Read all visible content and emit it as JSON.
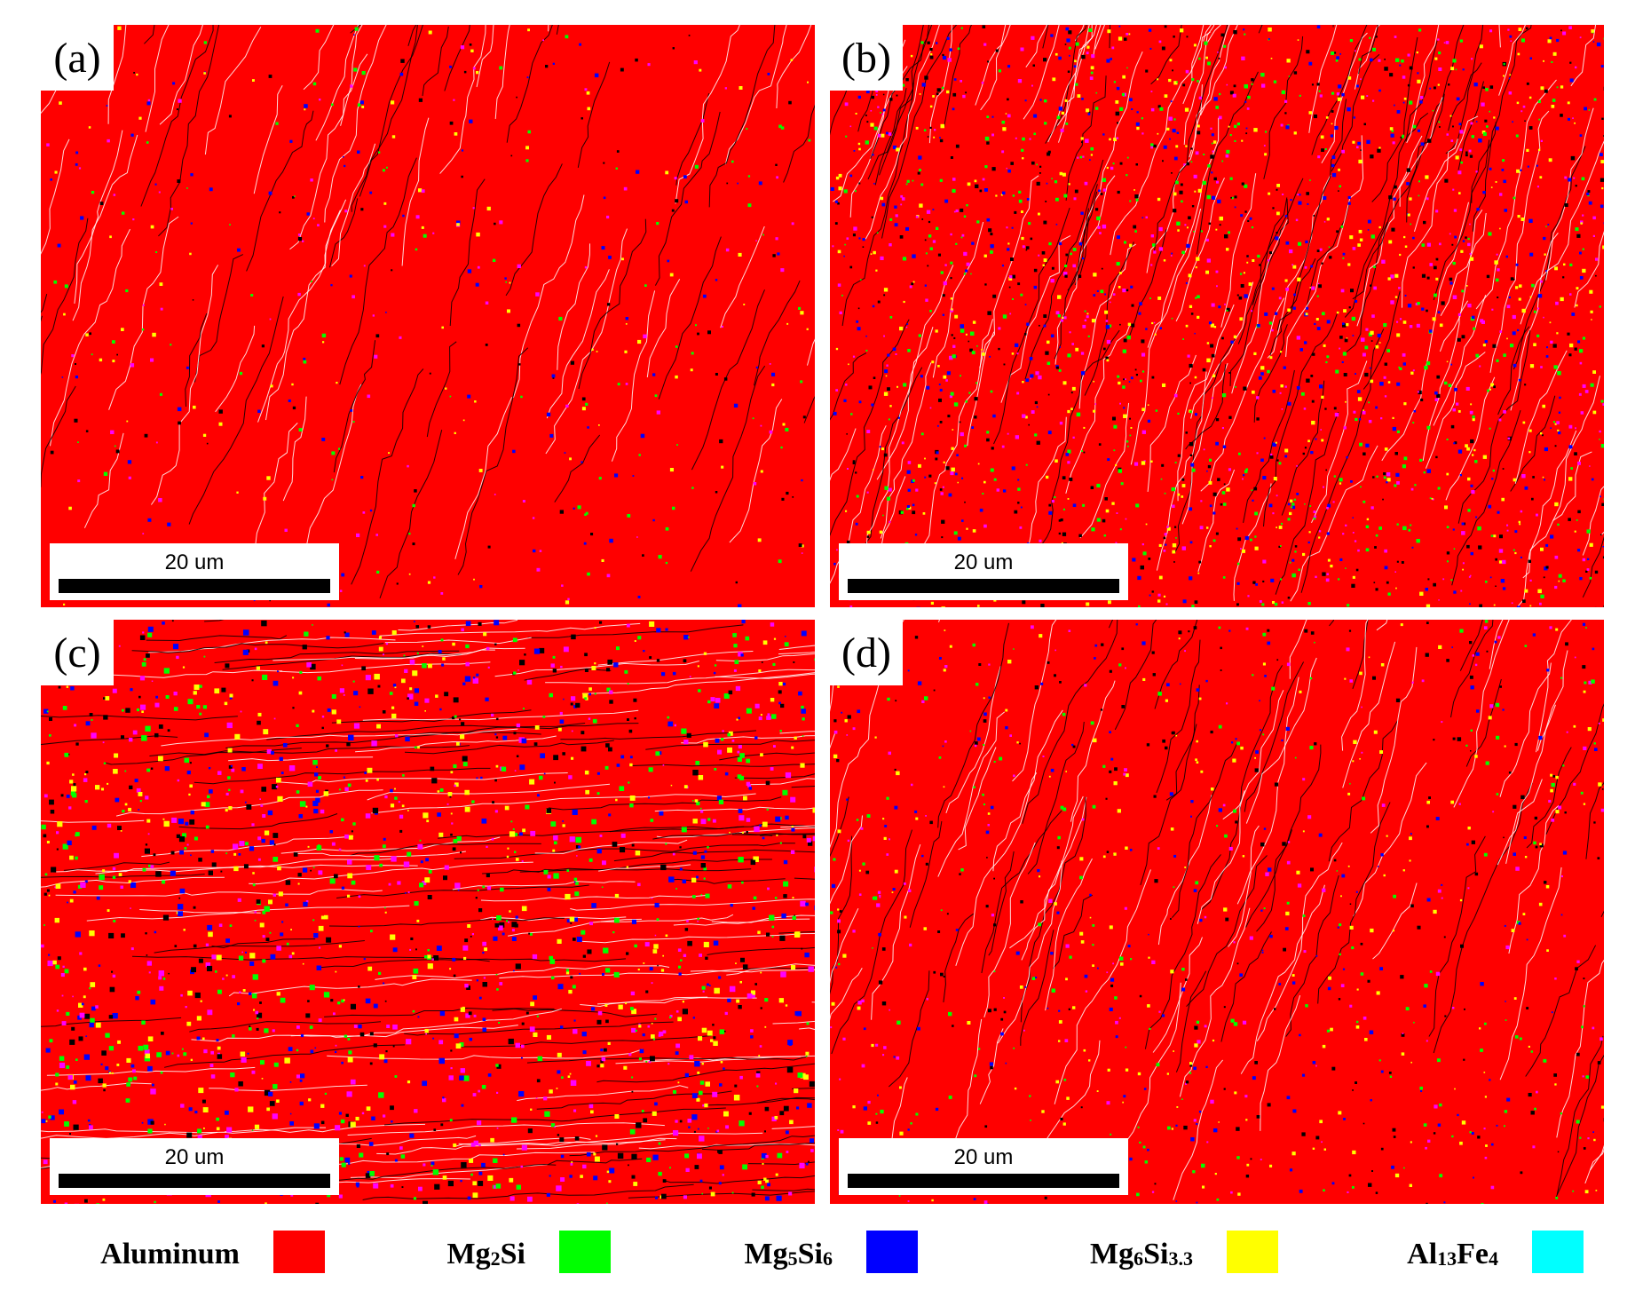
{
  "panels": [
    {
      "label": "(a)",
      "scale_label": "20 um",
      "density": 0.18
    },
    {
      "label": "(b)",
      "scale_label": "20 um",
      "density": 0.85
    },
    {
      "label": "(c)",
      "scale_label": "20 um",
      "density": 0.7
    },
    {
      "label": "(d)",
      "scale_label": "20 um",
      "density": 0.35
    }
  ],
  "legend": [
    {
      "name": "Aluminum",
      "base": "Aluminum",
      "sub": "",
      "rest": "",
      "sub2": "",
      "color": "#ff0000"
    },
    {
      "name": "Mg2Si",
      "base": "Mg",
      "sub": "2",
      "rest": "Si",
      "sub2": "",
      "color": "#00ff00"
    },
    {
      "name": "Mg5Si6",
      "base": "Mg",
      "sub": "5",
      "rest": "Si",
      "sub2": "6",
      "color": "#0000ff"
    },
    {
      "name": "Mg6Si3.3",
      "base": "Mg",
      "sub": "6",
      "rest": "Si",
      "sub2": "3.3",
      "color": "#ffff00"
    },
    {
      "name": "Al13Fe4",
      "base": "Al",
      "sub": "13",
      "rest": "Fe",
      "sub2": "4",
      "color": "#00ffff"
    }
  ],
  "colors": {
    "matrix": "#ff0000",
    "boundary_high": "#000000",
    "boundary_low": "#ffffff",
    "accent_magenta": "#ff00ff"
  }
}
